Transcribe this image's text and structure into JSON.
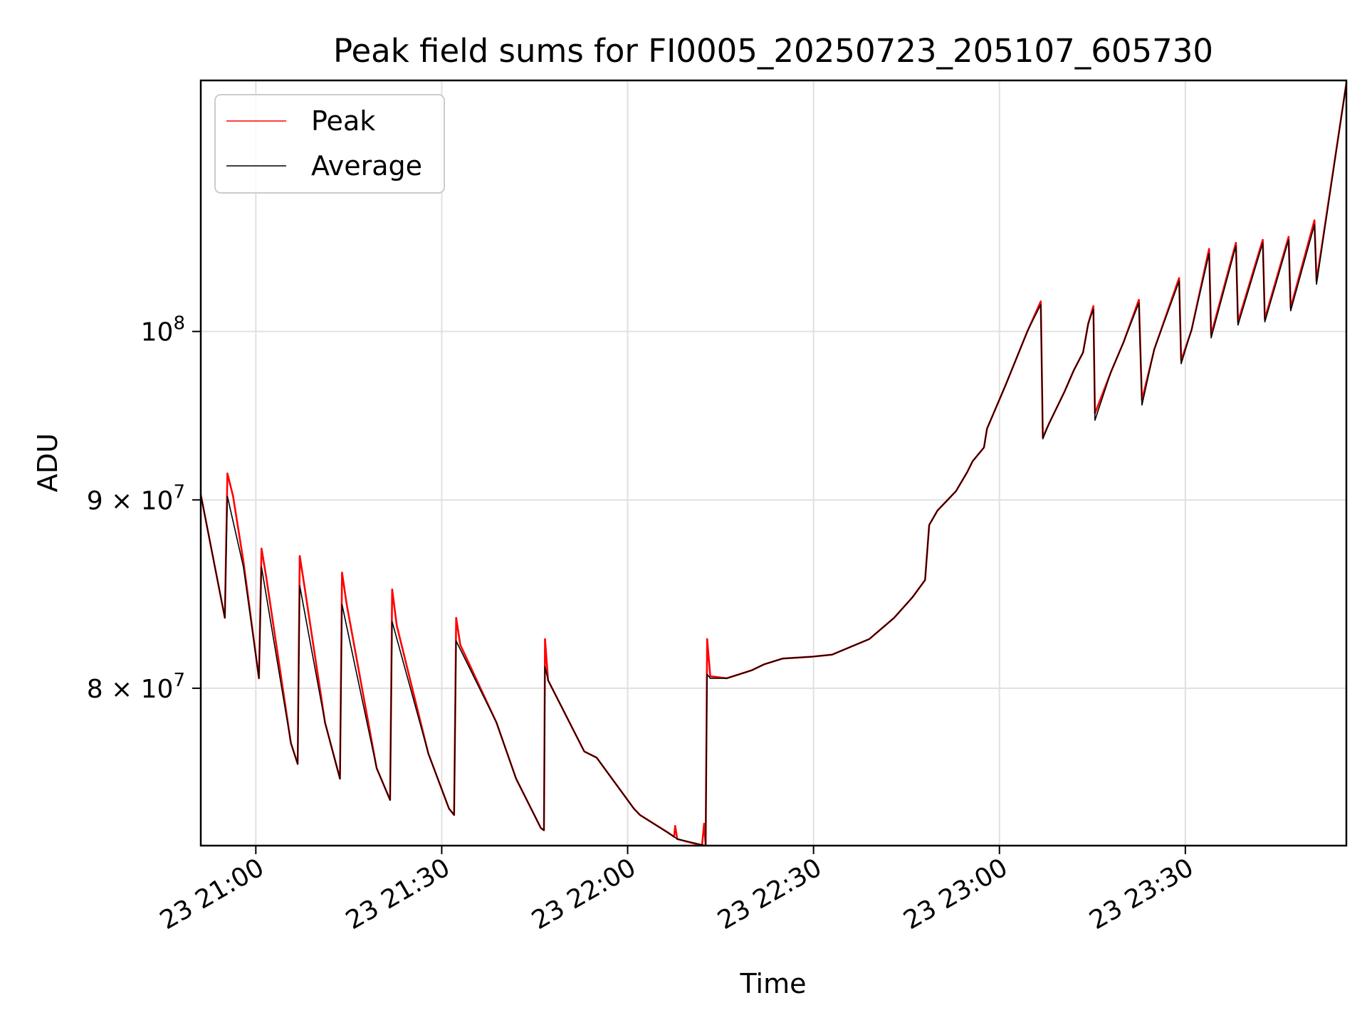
{
  "chart_data": {
    "type": "line",
    "title": "Peak field sums for FI0005_20250723_205107_605730",
    "xlabel": "Time",
    "ylabel": "ADU",
    "y_scale": "log",
    "grid": true,
    "legend_position": "top-left",
    "xlim": [
      "2025-07-23 20:51:07",
      "2025-07-23 23:55:59"
    ],
    "ylim": [
      72500000,
      117000000
    ],
    "x_ticks": [
      {
        "value": "2025-07-23 21:00:00",
        "label": "23 21:00"
      },
      {
        "value": "2025-07-23 21:30:00",
        "label": "23 21:30"
      },
      {
        "value": "2025-07-23 22:00:00",
        "label": "23 22:00"
      },
      {
        "value": "2025-07-23 22:30:00",
        "label": "23 22:30"
      },
      {
        "value": "2025-07-23 23:00:00",
        "label": "23 23:00"
      },
      {
        "value": "2025-07-23 23:30:00",
        "label": "23 23:30"
      }
    ],
    "y_ticks": [
      {
        "value": 80000000,
        "mantissa": "8",
        "base": "10",
        "exp": "7"
      },
      {
        "value": 90000000,
        "mantissa": "9",
        "base": "10",
        "exp": "7"
      },
      {
        "value": 100000000,
        "mantissa": "",
        "base": "10",
        "exp": "8"
      }
    ],
    "series": [
      {
        "name": "Peak",
        "color": "#ff0000",
        "points": [
          [
            "2025-07-23 20:51:07",
            90300000
          ],
          [
            "2025-07-23 20:55:00",
            83600000
          ],
          [
            "2025-07-23 20:55:25",
            91500000
          ],
          [
            "2025-07-23 20:56:20",
            90200000
          ],
          [
            "2025-07-23 20:58:00",
            86600000
          ],
          [
            "2025-07-23 21:00:30",
            80500000
          ],
          [
            "2025-07-23 21:00:55",
            87300000
          ],
          [
            "2025-07-23 21:01:40",
            85800000
          ],
          [
            "2025-07-23 21:05:40",
            77300000
          ],
          [
            "2025-07-23 21:06:45",
            76300000
          ],
          [
            "2025-07-23 21:07:05",
            86900000
          ],
          [
            "2025-07-23 21:07:50",
            85300000
          ],
          [
            "2025-07-23 21:11:10",
            78300000
          ],
          [
            "2025-07-23 21:13:35",
            75600000
          ],
          [
            "2025-07-23 21:13:55",
            86000000
          ],
          [
            "2025-07-23 21:14:40",
            84300000
          ],
          [
            "2025-07-23 21:19:30",
            76100000
          ],
          [
            "2025-07-23 21:21:40",
            74600000
          ],
          [
            "2025-07-23 21:22:00",
            85100000
          ],
          [
            "2025-07-23 21:22:45",
            83200000
          ],
          [
            "2025-07-23 21:27:50",
            76800000
          ],
          [
            "2025-07-23 21:31:10",
            74200000
          ],
          [
            "2025-07-23 21:32:00",
            73900000
          ],
          [
            "2025-07-23 21:32:20",
            83600000
          ],
          [
            "2025-07-23 21:33:00",
            82200000
          ],
          [
            "2025-07-23 21:38:50",
            78300000
          ],
          [
            "2025-07-23 21:42:00",
            75600000
          ],
          [
            "2025-07-23 21:46:00",
            73300000
          ],
          [
            "2025-07-23 21:46:30",
            73200000
          ],
          [
            "2025-07-23 21:46:40",
            82500000
          ],
          [
            "2025-07-23 21:47:10",
            80400000
          ],
          [
            "2025-07-23 21:53:00",
            76900000
          ],
          [
            "2025-07-23 21:55:00",
            76600000
          ],
          [
            "2025-07-23 22:01:00",
            74200000
          ],
          [
            "2025-07-23 22:02:00",
            73900000
          ],
          [
            "2025-07-23 22:06:30",
            73100000
          ],
          [
            "2025-07-23 22:07:30",
            72900000
          ],
          [
            "2025-07-23 22:07:40",
            73400000
          ],
          [
            "2025-07-23 22:08:00",
            72800000
          ],
          [
            "2025-07-23 22:12:00",
            72500000
          ],
          [
            "2025-07-23 22:12:20",
            73500000
          ],
          [
            "2025-07-23 22:12:35",
            72500000
          ],
          [
            "2025-07-23 22:12:50",
            82500000
          ],
          [
            "2025-07-23 22:13:20",
            80600000
          ],
          [
            "2025-07-23 22:16:00",
            80500000
          ],
          [
            "2025-07-23 22:20:00",
            80900000
          ],
          [
            "2025-07-23 22:22:00",
            81200000
          ],
          [
            "2025-07-23 22:25:00",
            81500000
          ],
          [
            "2025-07-23 22:30:00",
            81600000
          ],
          [
            "2025-07-23 22:33:00",
            81700000
          ],
          [
            "2025-07-23 22:36:00",
            82100000
          ],
          [
            "2025-07-23 22:39:00",
            82500000
          ],
          [
            "2025-07-23 22:43:00",
            83600000
          ],
          [
            "2025-07-23 22:46:00",
            84700000
          ],
          [
            "2025-07-23 22:48:00",
            85600000
          ],
          [
            "2025-07-23 22:48:40",
            88600000
          ],
          [
            "2025-07-23 22:50:00",
            89400000
          ],
          [
            "2025-07-23 22:53:00",
            90500000
          ],
          [
            "2025-07-23 22:54:50",
            91600000
          ],
          [
            "2025-07-23 22:55:40",
            92200000
          ],
          [
            "2025-07-23 22:57:30",
            93000000
          ],
          [
            "2025-07-23 22:58:00",
            94100000
          ],
          [
            "2025-07-23 23:01:00",
            96700000
          ],
          [
            "2025-07-23 23:04:30",
            100000000
          ],
          [
            "2025-07-23 23:06:40",
            101900000
          ],
          [
            "2025-07-23 23:07:00",
            93600000
          ],
          [
            "2025-07-23 23:08:00",
            94400000
          ],
          [
            "2025-07-23 23:10:30",
            96300000
          ],
          [
            "2025-07-23 23:12:00",
            97600000
          ],
          [
            "2025-07-23 23:13:30",
            98700000
          ],
          [
            "2025-07-23 23:14:20",
            100500000
          ],
          [
            "2025-07-23 23:15:10",
            101600000
          ],
          [
            "2025-07-23 23:15:25",
            95000000
          ],
          [
            "2025-07-23 23:18:00",
            97500000
          ],
          [
            "2025-07-23 23:20:00",
            99300000
          ],
          [
            "2025-07-23 23:22:30",
            102000000
          ],
          [
            "2025-07-23 23:23:00",
            95800000
          ],
          [
            "2025-07-23 23:25:00",
            98900000
          ],
          [
            "2025-07-23 23:29:00",
            103400000
          ],
          [
            "2025-07-23 23:29:20",
            98200000
          ],
          [
            "2025-07-23 23:31:00",
            100100000
          ],
          [
            "2025-07-23 23:33:50",
            105300000
          ],
          [
            "2025-07-23 23:34:10",
            99800000
          ],
          [
            "2025-07-23 23:38:10",
            105700000
          ],
          [
            "2025-07-23 23:38:30",
            100600000
          ],
          [
            "2025-07-23 23:42:30",
            105900000
          ],
          [
            "2025-07-23 23:42:50",
            100800000
          ],
          [
            "2025-07-23 23:46:40",
            106100000
          ],
          [
            "2025-07-23 23:47:00",
            101500000
          ],
          [
            "2025-07-23 23:50:50",
            107200000
          ],
          [
            "2025-07-23 23:51:10",
            103200000
          ],
          [
            "2025-07-23 23:55:59",
            116800000
          ]
        ]
      },
      {
        "name": "Average",
        "color": "#000000",
        "points": [
          [
            "2025-07-23 20:51:07",
            90300000
          ],
          [
            "2025-07-23 20:55:00",
            83600000
          ],
          [
            "2025-07-23 20:55:25",
            90200000
          ],
          [
            "2025-07-23 20:58:00",
            86300000
          ],
          [
            "2025-07-23 21:00:30",
            80500000
          ],
          [
            "2025-07-23 21:00:55",
            86300000
          ],
          [
            "2025-07-23 21:05:40",
            77300000
          ],
          [
            "2025-07-23 21:06:45",
            76300000
          ],
          [
            "2025-07-23 21:07:05",
            85300000
          ],
          [
            "2025-07-23 21:11:10",
            78300000
          ],
          [
            "2025-07-23 21:13:35",
            75600000
          ],
          [
            "2025-07-23 21:13:55",
            84300000
          ],
          [
            "2025-07-23 21:19:30",
            76100000
          ],
          [
            "2025-07-23 21:21:40",
            74600000
          ],
          [
            "2025-07-23 21:22:00",
            83400000
          ],
          [
            "2025-07-23 21:27:50",
            76800000
          ],
          [
            "2025-07-23 21:31:10",
            74200000
          ],
          [
            "2025-07-23 21:32:00",
            73900000
          ],
          [
            "2025-07-23 21:32:20",
            82400000
          ],
          [
            "2025-07-23 21:38:50",
            78300000
          ],
          [
            "2025-07-23 21:42:00",
            75600000
          ],
          [
            "2025-07-23 21:46:00",
            73300000
          ],
          [
            "2025-07-23 21:46:30",
            73200000
          ],
          [
            "2025-07-23 21:46:40",
            81100000
          ],
          [
            "2025-07-23 21:47:10",
            80400000
          ],
          [
            "2025-07-23 21:53:00",
            76900000
          ],
          [
            "2025-07-23 21:55:00",
            76600000
          ],
          [
            "2025-07-23 22:01:00",
            74200000
          ],
          [
            "2025-07-23 22:02:00",
            73900000
          ],
          [
            "2025-07-23 22:07:30",
            72900000
          ],
          [
            "2025-07-23 22:08:00",
            72800000
          ],
          [
            "2025-07-23 22:12:35",
            72500000
          ],
          [
            "2025-07-23 22:12:50",
            80700000
          ],
          [
            "2025-07-23 22:13:20",
            80500000
          ],
          [
            "2025-07-23 22:16:00",
            80500000
          ],
          [
            "2025-07-23 22:20:00",
            80900000
          ],
          [
            "2025-07-23 22:22:00",
            81200000
          ],
          [
            "2025-07-23 22:25:00",
            81500000
          ],
          [
            "2025-07-23 22:30:00",
            81600000
          ],
          [
            "2025-07-23 22:33:00",
            81700000
          ],
          [
            "2025-07-23 22:36:00",
            82100000
          ],
          [
            "2025-07-23 22:39:00",
            82500000
          ],
          [
            "2025-07-23 22:43:00",
            83600000
          ],
          [
            "2025-07-23 22:46:00",
            84700000
          ],
          [
            "2025-07-23 22:48:00",
            85600000
          ],
          [
            "2025-07-23 22:48:40",
            88600000
          ],
          [
            "2025-07-23 22:50:00",
            89400000
          ],
          [
            "2025-07-23 22:53:00",
            90500000
          ],
          [
            "2025-07-23 22:54:50",
            91600000
          ],
          [
            "2025-07-23 22:55:40",
            92200000
          ],
          [
            "2025-07-23 22:57:30",
            93000000
          ],
          [
            "2025-07-23 22:58:00",
            94100000
          ],
          [
            "2025-07-23 23:01:00",
            96700000
          ],
          [
            "2025-07-23 23:04:30",
            100000000
          ],
          [
            "2025-07-23 23:06:40",
            101700000
          ],
          [
            "2025-07-23 23:07:00",
            93500000
          ],
          [
            "2025-07-23 23:08:00",
            94400000
          ],
          [
            "2025-07-23 23:10:30",
            96300000
          ],
          [
            "2025-07-23 23:12:00",
            97600000
          ],
          [
            "2025-07-23 23:13:30",
            98700000
          ],
          [
            "2025-07-23 23:14:20",
            100500000
          ],
          [
            "2025-07-23 23:15:10",
            101400000
          ],
          [
            "2025-07-23 23:15:25",
            94600000
          ],
          [
            "2025-07-23 23:18:00",
            97500000
          ],
          [
            "2025-07-23 23:20:00",
            99300000
          ],
          [
            "2025-07-23 23:22:30",
            101800000
          ],
          [
            "2025-07-23 23:23:00",
            95500000
          ],
          [
            "2025-07-23 23:25:00",
            98900000
          ],
          [
            "2025-07-23 23:29:00",
            103200000
          ],
          [
            "2025-07-23 23:29:20",
            98000000
          ],
          [
            "2025-07-23 23:31:00",
            100100000
          ],
          [
            "2025-07-23 23:33:50",
            105000000
          ],
          [
            "2025-07-23 23:34:10",
            99600000
          ],
          [
            "2025-07-23 23:38:10",
            105500000
          ],
          [
            "2025-07-23 23:38:30",
            100400000
          ],
          [
            "2025-07-23 23:42:30",
            105700000
          ],
          [
            "2025-07-23 23:42:50",
            100600000
          ],
          [
            "2025-07-23 23:46:40",
            105900000
          ],
          [
            "2025-07-23 23:47:00",
            101300000
          ],
          [
            "2025-07-23 23:50:50",
            106900000
          ],
          [
            "2025-07-23 23:51:10",
            103000000
          ],
          [
            "2025-07-23 23:55:59",
            116800000
          ]
        ]
      }
    ]
  }
}
